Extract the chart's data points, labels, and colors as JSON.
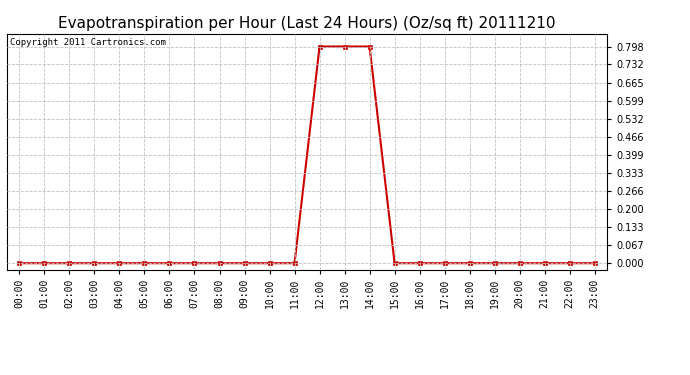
{
  "title": "Evapotranspiration per Hour (Last 24 Hours) (Oz/sq ft) 20111210",
  "copyright_text": "Copyright 2011 Cartronics.com",
  "hours": [
    "00:00",
    "01:00",
    "02:00",
    "03:00",
    "04:00",
    "05:00",
    "06:00",
    "07:00",
    "08:00",
    "09:00",
    "10:00",
    "11:00",
    "12:00",
    "13:00",
    "14:00",
    "15:00",
    "16:00",
    "17:00",
    "18:00",
    "19:00",
    "20:00",
    "21:00",
    "22:00",
    "23:00"
  ],
  "values": [
    0.0,
    0.0,
    0.0,
    0.0,
    0.0,
    0.0,
    0.0,
    0.0,
    0.0,
    0.0,
    0.0,
    0.0,
    0.798,
    0.798,
    0.798,
    0.0,
    0.0,
    0.0,
    0.0,
    0.0,
    0.0,
    0.0,
    0.0,
    0.0
  ],
  "line_color": "#cc0000",
  "marker_color": "#cc0000",
  "bg_color": "#ffffff",
  "grid_color": "#c0c0c0",
  "yticks": [
    0.0,
    0.067,
    0.133,
    0.2,
    0.266,
    0.333,
    0.399,
    0.466,
    0.532,
    0.599,
    0.665,
    0.732,
    0.798
  ],
  "ymax": 0.845,
  "ymin": -0.025,
  "title_fontsize": 11,
  "tick_fontsize": 7,
  "copyright_fontsize": 6.5
}
